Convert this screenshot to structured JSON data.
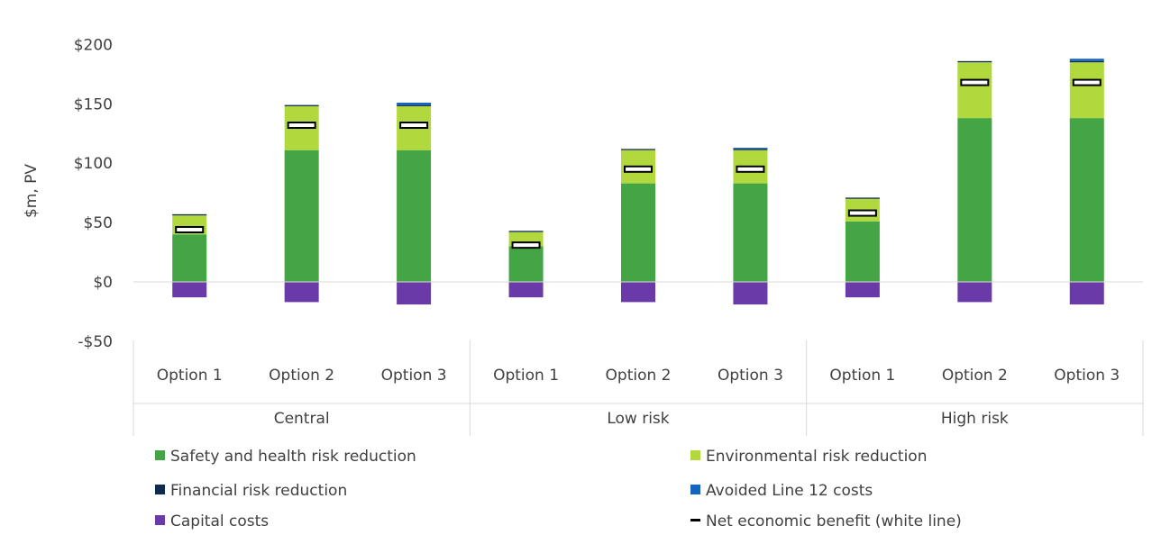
{
  "chart_data": {
    "type": "bar",
    "stacked": true,
    "ylabel": "$m, PV",
    "ylim": [
      -50,
      200
    ],
    "yticks": [
      -50,
      0,
      50,
      100,
      150,
      200
    ],
    "ytick_labels": [
      "-$50",
      "$0",
      "$50",
      "$100",
      "$150",
      "$200"
    ],
    "categories": [
      "Option 1",
      "Option 2",
      "Option 3",
      "Option 1",
      "Option 2",
      "Option 3",
      "Option 1",
      "Option 2",
      "Option 3"
    ],
    "groups": [
      {
        "label": "Central",
        "start": 0,
        "count": 3
      },
      {
        "label": "Low risk",
        "start": 3,
        "count": 3
      },
      {
        "label": "High risk",
        "start": 6,
        "count": 3
      }
    ],
    "series": [
      {
        "name": "Safety and health risk reduction",
        "color": "#43a543",
        "values": [
          40,
          111,
          111,
          30,
          83,
          83,
          51,
          138,
          138
        ]
      },
      {
        "name": "Environmental risk reduction",
        "color": "#b1d83c",
        "values": [
          16,
          37,
          37,
          12,
          28,
          28,
          19,
          47,
          47
        ]
      },
      {
        "name": "Financial risk reduction",
        "color": "#0e2a4f",
        "values": [
          1,
          1,
          1,
          1,
          1,
          1,
          1,
          1,
          1
        ]
      },
      {
        "name": "Avoided Line 12 costs",
        "color": "#1565c0",
        "values": [
          0,
          0,
          2,
          0,
          0,
          1,
          0,
          0,
          2
        ]
      },
      {
        "name": "Capital costs",
        "color": "#6a3aa8",
        "values": [
          -13,
          -17,
          -19,
          -13,
          -17,
          -19,
          -13,
          -17,
          -19
        ]
      }
    ],
    "net_benefit": {
      "name": "Net economic benefit (white line)",
      "values": [
        44,
        132,
        132,
        31,
        95,
        95,
        58,
        168,
        168
      ]
    },
    "legend_position": "bottom",
    "grid": false
  }
}
